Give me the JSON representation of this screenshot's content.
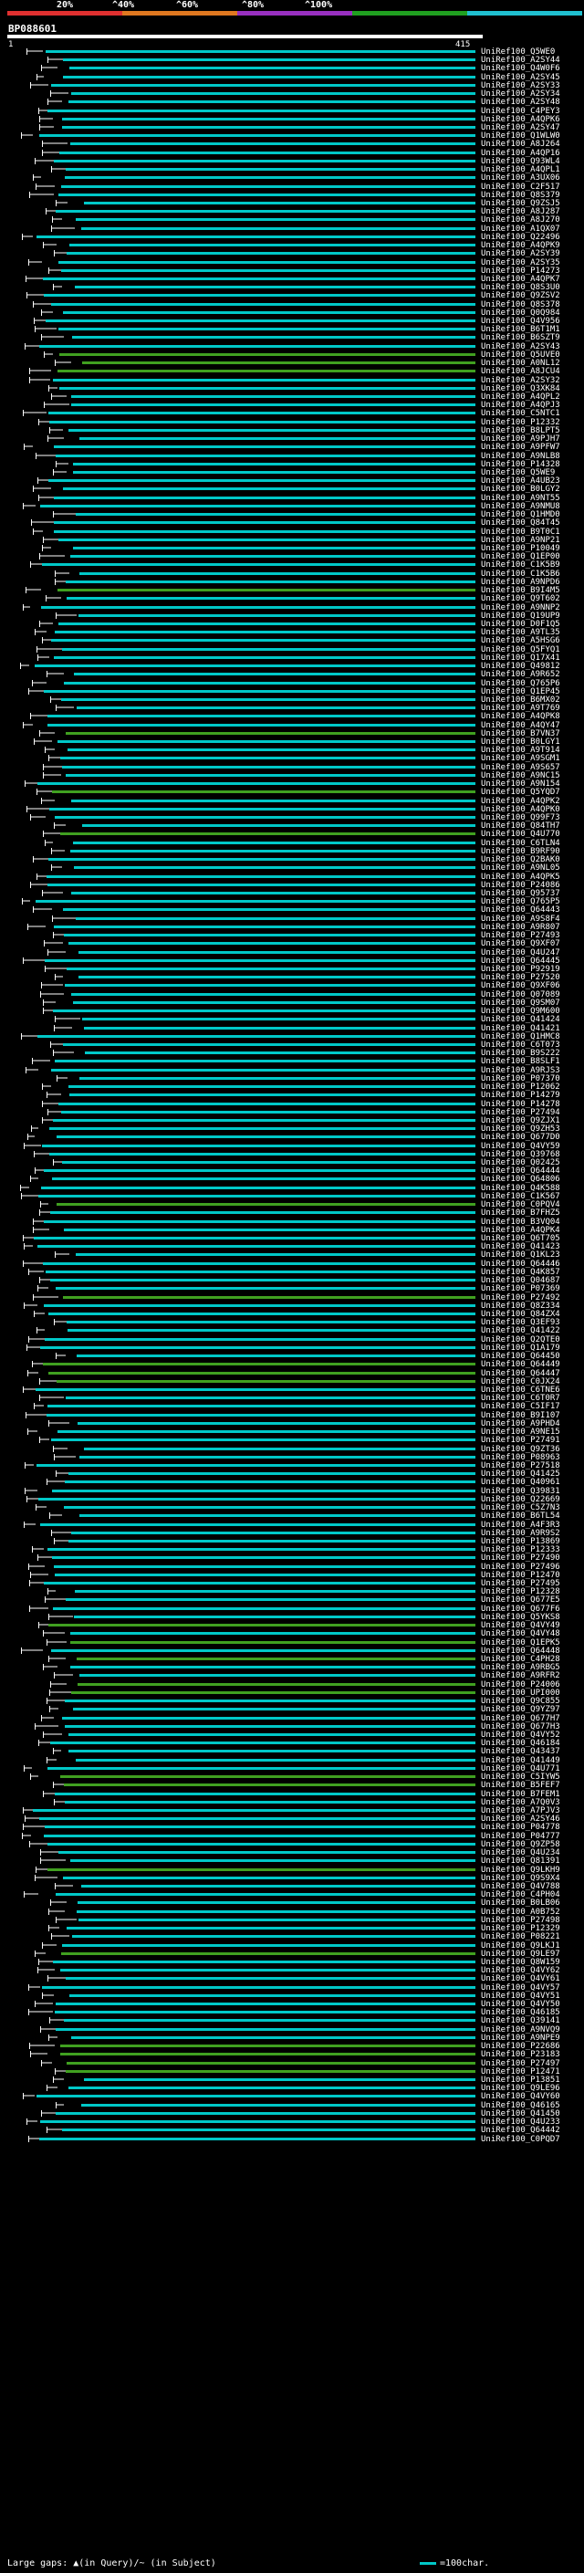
{
  "header": {
    "query_id": "BP088601",
    "range_start": "1",
    "range_end": "415",
    "scale_labels": [
      "20%",
      "^40%",
      "^60%",
      "^80%",
      "^100%"
    ],
    "scale_colors": [
      "#e03030",
      "#e07820",
      "#9830c0",
      "#20a020",
      "#20c0d0"
    ]
  },
  "footer": {
    "legend_left": "Large gaps: ▲(in Query)/~ (in Subject)",
    "legend_right": "=100char."
  },
  "colors": {
    "hit_cyan": "#00c8c8",
    "hit_green": "#40a020",
    "hit_white": "#ffffff"
  },
  "hits": [
    "UniRef100_Q5WE0",
    "UniRef100_A2SY44",
    "UniRef100_Q4W0F6",
    "UniRef100_A2SY45",
    "UniRef100_A2SY33",
    "UniRef100_A2SY34",
    "UniRef100_A2SY48",
    "UniRef100_C4PEY3",
    "UniRef100_A4QPK6",
    "UniRef100_A2SY47",
    "UniRef100_Q1WLW0",
    "UniRef100_A8J264",
    "UniRef100_A4QP16",
    "UniRef100_Q93WL4",
    "UniRef100_A4QPL1",
    "UniRef100_A3UX06",
    "UniRef100_C2F517",
    "UniRef100_Q8S379",
    "UniRef100_Q9ZSJ5",
    "UniRef100_A8J287",
    "UniRef100_A8J270",
    "UniRef100_A1QX07",
    "UniRef100_Q22496",
    "UniRef100_A4QPK9",
    "UniRef100_A2SY39",
    "UniRef100_A2SY35",
    "UniRef100_P14273",
    "UniRef100_A4QPK7",
    "UniRef100_Q8S3U0",
    "UniRef100_Q9ZSV2",
    "UniRef100_Q8S378",
    "UniRef100_Q0Q984",
    "UniRef100_Q4V956",
    "UniRef100_B6T1M1",
    "UniRef100_B6SZT9",
    "UniRef100_A2SY43",
    "UniRef100_Q5UVE0",
    "UniRef100_A0NL12",
    "UniRef100_A8JCU4",
    "UniRef100_A2SY32",
    "UniRef100_Q3XK84",
    "UniRef100_A4QPL2",
    "UniRef100_A4QPJ3",
    "UniRef100_C5NTC1",
    "UniRef100_P12332",
    "UniRef100_B8LPT5",
    "UniRef100_A9PJH7",
    "UniRef100_A9PFW7",
    "UniRef100_A9NLB8",
    "UniRef100_P14328",
    "UniRef100_Q5WE9",
    "UniRef100_A4UB23",
    "UniRef100_B0LGY2",
    "UniRef100_A9NT55",
    "UniRef100_A9NMU8",
    "UniRef100_Q1HMD0",
    "UniRef100_Q84T45",
    "UniRef100_B9T0C1",
    "UniRef100_A9NP21",
    "UniRef100_P10049",
    "UniRef100_Q1EP00",
    "UniRef100_C1K5B9",
    "UniRef100_C1K5B6",
    "UniRef100_A9NPD6",
    "UniRef100_B9I4M5",
    "UniRef100_Q9T602",
    "UniRef100_A9NNP2",
    "UniRef100_Q19UP9",
    "UniRef100_D0F1Q5",
    "UniRef100_A9TL35",
    "UniRef100_A5HSG6",
    "UniRef100_Q5FYQ1",
    "UniRef100_Q17X41",
    "UniRef100_Q49812",
    "UniRef100_A9R652",
    "UniRef100_Q765P6",
    "UniRef100_Q1EP45",
    "UniRef100_B6MX02",
    "UniRef100_A9T769",
    "UniRef100_A4QPK8",
    "UniRef100_A4QY47",
    "UniRef100_B7VN37",
    "UniRef100_B0LGY1",
    "UniRef100_A9T914",
    "UniRef100_A9SGM1",
    "UniRef100_A9S657",
    "UniRef100_A9NC15",
    "UniRef100_A9N154",
    "UniRef100_Q5YQD7",
    "UniRef100_A4QPK2",
    "UniRef100_A4QPK0",
    "UniRef100_Q99F73",
    "UniRef100_Q84TH7",
    "UniRef100_Q4U770",
    "UniRef100_C6TLN4",
    "UniRef100_B9RF90",
    "UniRef100_Q2BAK0",
    "UniRef100_A9NL05",
    "UniRef100_A4QPK5",
    "UniRef100_P24086",
    "UniRef100_Q95737",
    "UniRef100_Q765P5",
    "UniRef100_Q64443",
    "UniRef100_A9S8F4",
    "UniRef100_A9R807",
    "UniRef100_P27493",
    "UniRef100_Q9XF07",
    "UniRef100_Q4U247",
    "UniRef100_Q64445",
    "UniRef100_P92919",
    "UniRef100_P27520",
    "UniRef100_Q9XF06",
    "UniRef100_Q07089",
    "UniRef100_Q9SM07",
    "UniRef100_Q9M600",
    "UniRef100_Q41424",
    "UniRef100_Q41421",
    "UniRef100_Q1HMC8",
    "UniRef100_C6T073",
    "UniRef100_B9S222",
    "UniRef100_B8SLF1",
    "UniRef100_A9RJS3",
    "UniRef100_P07370",
    "UniRef100_P12062",
    "UniRef100_P14279",
    "UniRef100_P14278",
    "UniRef100_P27494",
    "UniRef100_Q9ZJX1",
    "UniRef100_Q9ZH53",
    "UniRef100_Q677D0",
    "UniRef100_Q4VY59",
    "UniRef100_Q39768",
    "UniRef100_Q02425",
    "UniRef100_Q64444",
    "UniRef100_Q64806",
    "UniRef100_Q4K588",
    "UniRef100_C1K567",
    "UniRef100_C0PQV4",
    "UniRef100_B7FHZ5",
    "UniRef100_B3VQ04",
    "UniRef100_A4QPK4",
    "UniRef100_Q6T705",
    "UniRef100_Q41423",
    "UniRef100_Q1KL23",
    "UniRef100_Q64446",
    "UniRef100_Q4K857",
    "UniRef100_Q04687",
    "UniRef100_P07369",
    "UniRef100_P27492",
    "UniRef100_Q8Z334",
    "UniRef100_Q84ZX4",
    "UniRef100_Q3EF93",
    "UniRef100_Q41422",
    "UniRef100_Q2QTE0",
    "UniRef100_Q1A179",
    "UniRef100_Q64450",
    "UniRef100_Q64449",
    "UniRef100_Q64447",
    "UniRef100_C0JX24",
    "UniRef100_C6TNE6",
    "UniRef100_C6T0R7",
    "UniRef100_C5IF17",
    "UniRef100_B9I107",
    "UniRef100_A9PHD4",
    "UniRef100_A9NE15",
    "UniRef100_P27491",
    "UniRef100_Q9ZT36",
    "UniRef100_P08963",
    "UniRef100_P27518",
    "UniRef100_Q41425",
    "UniRef100_Q40961",
    "UniRef100_Q39831",
    "UniRef100_Q22669",
    "UniRef100_C5Z7N3",
    "UniRef100_B6TL54",
    "UniRef100_A4F3R3",
    "UniRef100_A9R9S2",
    "UniRef100_P13869",
    "UniRef100_P12333",
    "UniRef100_P27490",
    "UniRef100_P27496",
    "UniRef100_P12470",
    "UniRef100_P27495",
    "UniRef100_P12328",
    "UniRef100_Q677E5",
    "UniRef100_Q677F6",
    "UniRef100_Q5YKS8",
    "UniRef100_Q4VY49",
    "UniRef100_Q4VY48",
    "UniRef100_Q1EPK5",
    "UniRef100_Q64448",
    "UniRef100_C4PH28",
    "UniRef100_A9RBG5",
    "UniRef100_A9RFR2",
    "UniRef100_P24006",
    "UniRef100_UPI000",
    "UniRef100_Q9C855",
    "UniRef100_Q9YZ97",
    "UniRef100_Q677H7",
    "UniRef100_Q677H3",
    "UniRef100_Q4VY52",
    "UniRef100_Q46184",
    "UniRef100_Q43437",
    "UniRef100_Q41449",
    "UniRef100_Q4U771",
    "UniRef100_C5IYW5",
    "UniRef100_B5FEF7",
    "UniRef100_B7FEM1",
    "UniRef100_A7Q0V3",
    "UniRef100_A7PJV3",
    "UniRef100_A2SY46",
    "UniRef100_P04778",
    "UniRef100_P04777",
    "UniRef100_Q9ZP58",
    "UniRef100_Q4U234",
    "UniRef100_Q81391",
    "UniRef100_Q9LKH9",
    "UniRef100_Q9S9X4",
    "UniRef100_Q4V788",
    "UniRef100_C4PH04",
    "UniRef100_B0LB06",
    "UniRef100_A0B752",
    "UniRef100_P27498",
    "UniRef100_P12329",
    "UniRef100_P08221",
    "UniRef100_Q9LKJ1",
    "UniRef100_Q9LE97",
    "UniRef100_Q8W159",
    "UniRef100_Q4VY62",
    "UniRef100_Q4VY61",
    "UniRef100_Q4VY57",
    "UniRef100_Q4VY51",
    "UniRef100_Q4VY50",
    "UniRef100_Q46185",
    "UniRef100_Q39141",
    "UniRef100_A9NVQ9",
    "UniRef100_A9NPE9",
    "UniRef100_P22686",
    "UniRef100_P23183",
    "UniRef100_P27497",
    "UniRef100_P12471",
    "UniRef100_P13851",
    "UniRef100_Q9LE96",
    "UniRef100_Q4VY60",
    "UniRef100_Q46165",
    "UniRef100_Q41450",
    "UniRef100_Q4U233",
    "UniRef100_Q64442",
    "UniRef100_C0PQD7"
  ],
  "hit_types": [
    "c",
    "c",
    "c",
    "c",
    "cd",
    "cd",
    "c",
    "c",
    "c",
    "c",
    "c",
    "c",
    "c",
    "c",
    "c",
    "c",
    "c",
    "c",
    "c",
    "c",
    "c",
    "c",
    "c",
    "c",
    "c",
    "c",
    "c",
    "c",
    "c",
    "c",
    "c",
    "c",
    "c",
    "c",
    "c",
    "c",
    "g",
    "g",
    "g",
    "c",
    "c",
    "c",
    "c",
    "c",
    "c",
    "c",
    "c",
    "c",
    "c",
    "c",
    "c",
    "c",
    "c",
    "c",
    "c",
    "c",
    "c",
    "c",
    "c",
    "c",
    "c",
    "c",
    "c",
    "c",
    "g",
    "c",
    "c",
    "c",
    "c",
    "c",
    "c",
    "c",
    "c",
    "c",
    "c",
    "c",
    "c",
    "c",
    "c",
    "c",
    "c",
    "g",
    "c",
    "c",
    "c",
    "c",
    "c",
    "c",
    "g",
    "c",
    "c",
    "c",
    "c",
    "g",
    "c",
    "c",
    "c",
    "c",
    "c",
    "c",
    "c",
    "c",
    "c",
    "c",
    "c",
    "c",
    "c",
    "c",
    "c",
    "c",
    "c",
    "c",
    "c",
    "c",
    "c",
    "c",
    "c",
    "c",
    "c",
    "c",
    "c",
    "c",
    "c",
    "c",
    "c",
    "c",
    "c",
    "c",
    "c",
    "c",
    "c",
    "c",
    "c",
    "c",
    "c",
    "c",
    "c",
    "g",
    "c",
    "c",
    "c",
    "c",
    "c",
    "c",
    "c",
    "c",
    "c",
    "c",
    "g",
    "c",
    "c",
    "c",
    "c",
    "c",
    "c",
    "c",
    "g",
    "g",
    "g",
    "c",
    "c",
    "c",
    "c",
    "c",
    "c",
    "c",
    "c",
    "c",
    "c",
    "c",
    "c",
    "c",
    "c",
    "c",
    "c",
    "c",
    "c",
    "c",
    "c",
    "c",
    "c",
    "c",
    "c",
    "c",
    "c",
    "c",
    "c",
    "g",
    "c",
    "g",
    "c",
    "g",
    "c",
    "c",
    "g",
    "g",
    "c",
    "c",
    "c",
    "c",
    "c",
    "c",
    "c",
    "c",
    "c",
    "g",
    "g",
    "c",
    "c",
    "c",
    "c",
    "c",
    "c",
    "c",
    "c",
    "c",
    "g",
    "c",
    "c",
    "c",
    "c",
    "c",
    "c",
    "c",
    "c",
    "c",
    "g",
    "c",
    "c",
    "c",
    "c",
    "c",
    "c",
    "c",
    "c",
    "c",
    "c",
    "g",
    "g",
    "g",
    "g",
    "c",
    "c",
    "c",
    "c",
    "c",
    "c",
    "c",
    "c",
    "g",
    "c",
    "c",
    "c",
    "c",
    "c",
    "c",
    "c"
  ]
}
